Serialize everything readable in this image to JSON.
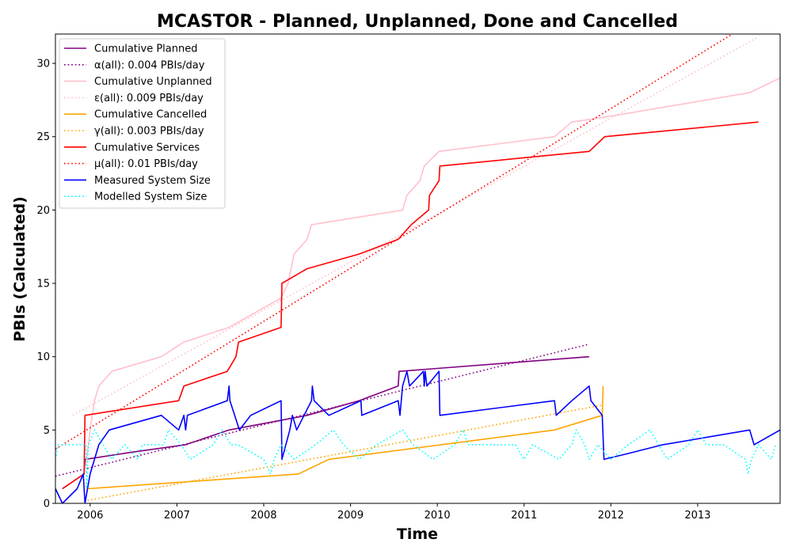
{
  "chart_data": {
    "type": "line",
    "title": "MCASTOR - Planned, Unplanned, Done  and Cancelled",
    "xlabel": "Time",
    "ylabel": "PBIs (Calculated)",
    "xlim": [
      2005.6,
      2013.95
    ],
    "ylim": [
      0,
      32
    ],
    "x_ticks": [
      {
        "value": 2006,
        "label": "2006"
      },
      {
        "value": 2007,
        "label": "2007"
      },
      {
        "value": 2008,
        "label": "2008"
      },
      {
        "value": 2009,
        "label": "2009"
      },
      {
        "value": 2010,
        "label": "2010"
      },
      {
        "value": 2011,
        "label": "2011"
      },
      {
        "value": 2012,
        "label": "2012"
      },
      {
        "value": 2013,
        "label": "2013"
      }
    ],
    "y_ticks": [
      {
        "value": 0,
        "label": "0"
      },
      {
        "value": 5,
        "label": "5"
      },
      {
        "value": 10,
        "label": "10"
      },
      {
        "value": 15,
        "label": "15"
      },
      {
        "value": 20,
        "label": "20"
      },
      {
        "value": 25,
        "label": "25"
      },
      {
        "value": 30,
        "label": "30"
      }
    ],
    "grid": false,
    "legend_position": "top-left",
    "series": [
      {
        "name": "Cumulative Planned",
        "color": "#800080",
        "style": "solid",
        "points": [
          [
            2005.68,
            1
          ],
          [
            2005.93,
            2
          ],
          [
            2005.94,
            3
          ],
          [
            2006.5,
            3.5
          ],
          [
            2007.1,
            4
          ],
          [
            2007.6,
            5
          ],
          [
            2008.5,
            6
          ],
          [
            2009.1,
            7
          ],
          [
            2009.55,
            8
          ],
          [
            2009.56,
            9
          ],
          [
            2010.0,
            9.2
          ],
          [
            2011.75,
            10
          ]
        ]
      },
      {
        "name": "α(all): 0.004 PBIs/day",
        "color": "#800080",
        "style": "dotted",
        "points": [
          [
            2005.6,
            1.85
          ],
          [
            2011.75,
            10.85
          ]
        ]
      },
      {
        "name": "Cumulative Unplanned",
        "color": "#ffc0cb",
        "style": "solid",
        "points": [
          [
            2005.93,
            2
          ],
          [
            2005.96,
            3
          ],
          [
            2006.0,
            5
          ],
          [
            2006.05,
            7
          ],
          [
            2006.1,
            8
          ],
          [
            2006.25,
            9
          ],
          [
            2006.82,
            10
          ],
          [
            2007.08,
            11
          ],
          [
            2007.6,
            12
          ],
          [
            2008.2,
            14
          ],
          [
            2008.28,
            15
          ],
          [
            2008.35,
            17
          ],
          [
            2008.5,
            18
          ],
          [
            2008.55,
            19
          ],
          [
            2009.6,
            20
          ],
          [
            2009.65,
            21
          ],
          [
            2009.8,
            22
          ],
          [
            2009.85,
            23
          ],
          [
            2010.02,
            24
          ],
          [
            2011.35,
            25
          ],
          [
            2011.55,
            26
          ],
          [
            2011.9,
            26.3
          ],
          [
            2013.6,
            28
          ],
          [
            2013.95,
            29
          ]
        ]
      },
      {
        "name": "ε(all): 0.009 PBIs/day",
        "color": "#ffc0cb",
        "style": "dotted",
        "points": [
          [
            2005.8,
            6
          ],
          [
            2013.7,
            31.8
          ]
        ]
      },
      {
        "name": "Cumulative Cancelled",
        "color": "#ffa500",
        "style": "solid",
        "points": [
          [
            2005.97,
            1
          ],
          [
            2008.4,
            2
          ],
          [
            2008.75,
            3
          ],
          [
            2011.35,
            5
          ],
          [
            2011.9,
            6
          ],
          [
            2011.91,
            8
          ]
        ]
      },
      {
        "name": "γ(all): 0.003 PBIs/day",
        "color": "#ffa500",
        "style": "dotted",
        "points": [
          [
            2005.97,
            0.2
          ],
          [
            2011.9,
            6.7
          ]
        ]
      },
      {
        "name": "Cumulative Services",
        "color": "#ff0000",
        "style": "solid",
        "points": [
          [
            2005.68,
            1
          ],
          [
            2005.93,
            2
          ],
          [
            2005.94,
            6
          ],
          [
            2007.02,
            7
          ],
          [
            2007.08,
            8
          ],
          [
            2007.58,
            9
          ],
          [
            2007.68,
            10
          ],
          [
            2007.71,
            11
          ],
          [
            2008.2,
            12
          ],
          [
            2008.21,
            15
          ],
          [
            2008.5,
            16
          ],
          [
            2009.1,
            17
          ],
          [
            2009.55,
            18
          ],
          [
            2009.7,
            19
          ],
          [
            2009.9,
            20
          ],
          [
            2009.91,
            21
          ],
          [
            2010.02,
            22
          ],
          [
            2010.03,
            23
          ],
          [
            2011.75,
            24
          ],
          [
            2011.93,
            25
          ],
          [
            2013.7,
            26
          ]
        ]
      },
      {
        "name": "μ(all): 0.01 PBIs/day",
        "color": "#ff0000",
        "style": "dotted",
        "points": [
          [
            2005.6,
            3.7
          ],
          [
            2013.4,
            32.0
          ]
        ]
      },
      {
        "name": "Measured System Size",
        "color": "#0000ff",
        "style": "solid",
        "points": [
          [
            2005.6,
            1
          ],
          [
            2005.68,
            0
          ],
          [
            2005.85,
            1
          ],
          [
            2005.92,
            2
          ],
          [
            2005.94,
            0
          ],
          [
            2005.97,
            1
          ],
          [
            2006.0,
            2
          ],
          [
            2006.1,
            4
          ],
          [
            2006.22,
            5
          ],
          [
            2006.82,
            6
          ],
          [
            2007.02,
            5
          ],
          [
            2007.08,
            6
          ],
          [
            2007.1,
            5
          ],
          [
            2007.12,
            6
          ],
          [
            2007.58,
            7
          ],
          [
            2007.6,
            8
          ],
          [
            2007.61,
            7
          ],
          [
            2007.72,
            5
          ],
          [
            2007.85,
            6
          ],
          [
            2008.2,
            7
          ],
          [
            2008.21,
            3
          ],
          [
            2008.3,
            5
          ],
          [
            2008.33,
            6
          ],
          [
            2008.38,
            5
          ],
          [
            2008.55,
            7
          ],
          [
            2008.56,
            8
          ],
          [
            2008.58,
            7
          ],
          [
            2008.75,
            6
          ],
          [
            2009.12,
            7
          ],
          [
            2009.13,
            6
          ],
          [
            2009.55,
            7
          ],
          [
            2009.57,
            6
          ],
          [
            2009.6,
            8
          ],
          [
            2009.65,
            9
          ],
          [
            2009.68,
            8
          ],
          [
            2009.84,
            9
          ],
          [
            2009.85,
            8
          ],
          [
            2009.86,
            9
          ],
          [
            2009.88,
            8
          ],
          [
            2010.02,
            9
          ],
          [
            2010.03,
            6
          ],
          [
            2011.35,
            7
          ],
          [
            2011.37,
            6
          ],
          [
            2011.55,
            7
          ],
          [
            2011.75,
            8
          ],
          [
            2011.77,
            7
          ],
          [
            2011.9,
            6
          ],
          [
            2011.92,
            3
          ],
          [
            2012.2,
            3.4
          ],
          [
            2012.6,
            4
          ],
          [
            2013.0,
            4.4
          ],
          [
            2013.6,
            5
          ],
          [
            2013.65,
            4
          ],
          [
            2013.95,
            5
          ]
        ]
      },
      {
        "name": "Modelled System Size",
        "color": "#00ffff",
        "style": "dotted",
        "points": [
          [
            2005.6,
            3
          ],
          [
            2005.63,
            4
          ],
          [
            2005.95,
            4
          ],
          [
            2005.96,
            1
          ],
          [
            2005.98,
            4
          ],
          [
            2006.05,
            5
          ],
          [
            2006.15,
            4
          ],
          [
            2006.25,
            3
          ],
          [
            2006.4,
            4
          ],
          [
            2006.55,
            3
          ],
          [
            2006.6,
            4
          ],
          [
            2006.85,
            4
          ],
          [
            2006.9,
            5
          ],
          [
            2007.05,
            4
          ],
          [
            2007.15,
            3
          ],
          [
            2007.42,
            4
          ],
          [
            2007.52,
            5
          ],
          [
            2007.62,
            4
          ],
          [
            2007.7,
            4
          ],
          [
            2008.0,
            3
          ],
          [
            2008.08,
            2
          ],
          [
            2008.12,
            3
          ],
          [
            2008.2,
            4
          ],
          [
            2008.35,
            3
          ],
          [
            2008.6,
            4
          ],
          [
            2008.8,
            5
          ],
          [
            2008.92,
            4
          ],
          [
            2009.1,
            3
          ],
          [
            2009.3,
            4
          ],
          [
            2009.6,
            5
          ],
          [
            2009.72,
            4
          ],
          [
            2009.95,
            3
          ],
          [
            2010.2,
            4
          ],
          [
            2010.3,
            5
          ],
          [
            2010.35,
            4
          ],
          [
            2010.5,
            4
          ],
          [
            2010.9,
            4
          ],
          [
            2011.0,
            3
          ],
          [
            2011.1,
            4
          ],
          [
            2011.4,
            3
          ],
          [
            2011.55,
            4
          ],
          [
            2011.6,
            5
          ],
          [
            2011.7,
            4
          ],
          [
            2011.75,
            3
          ],
          [
            2011.85,
            4
          ],
          [
            2012.0,
            3
          ],
          [
            2012.2,
            4
          ],
          [
            2012.45,
            5
          ],
          [
            2012.55,
            4
          ],
          [
            2012.65,
            3
          ],
          [
            2012.9,
            4
          ],
          [
            2013.0,
            5
          ],
          [
            2013.1,
            4
          ],
          [
            2013.3,
            4
          ],
          [
            2013.55,
            3
          ],
          [
            2013.58,
            2
          ],
          [
            2013.62,
            3
          ],
          [
            2013.7,
            4
          ],
          [
            2013.85,
            3
          ],
          [
            2013.9,
            4
          ]
        ]
      }
    ]
  }
}
